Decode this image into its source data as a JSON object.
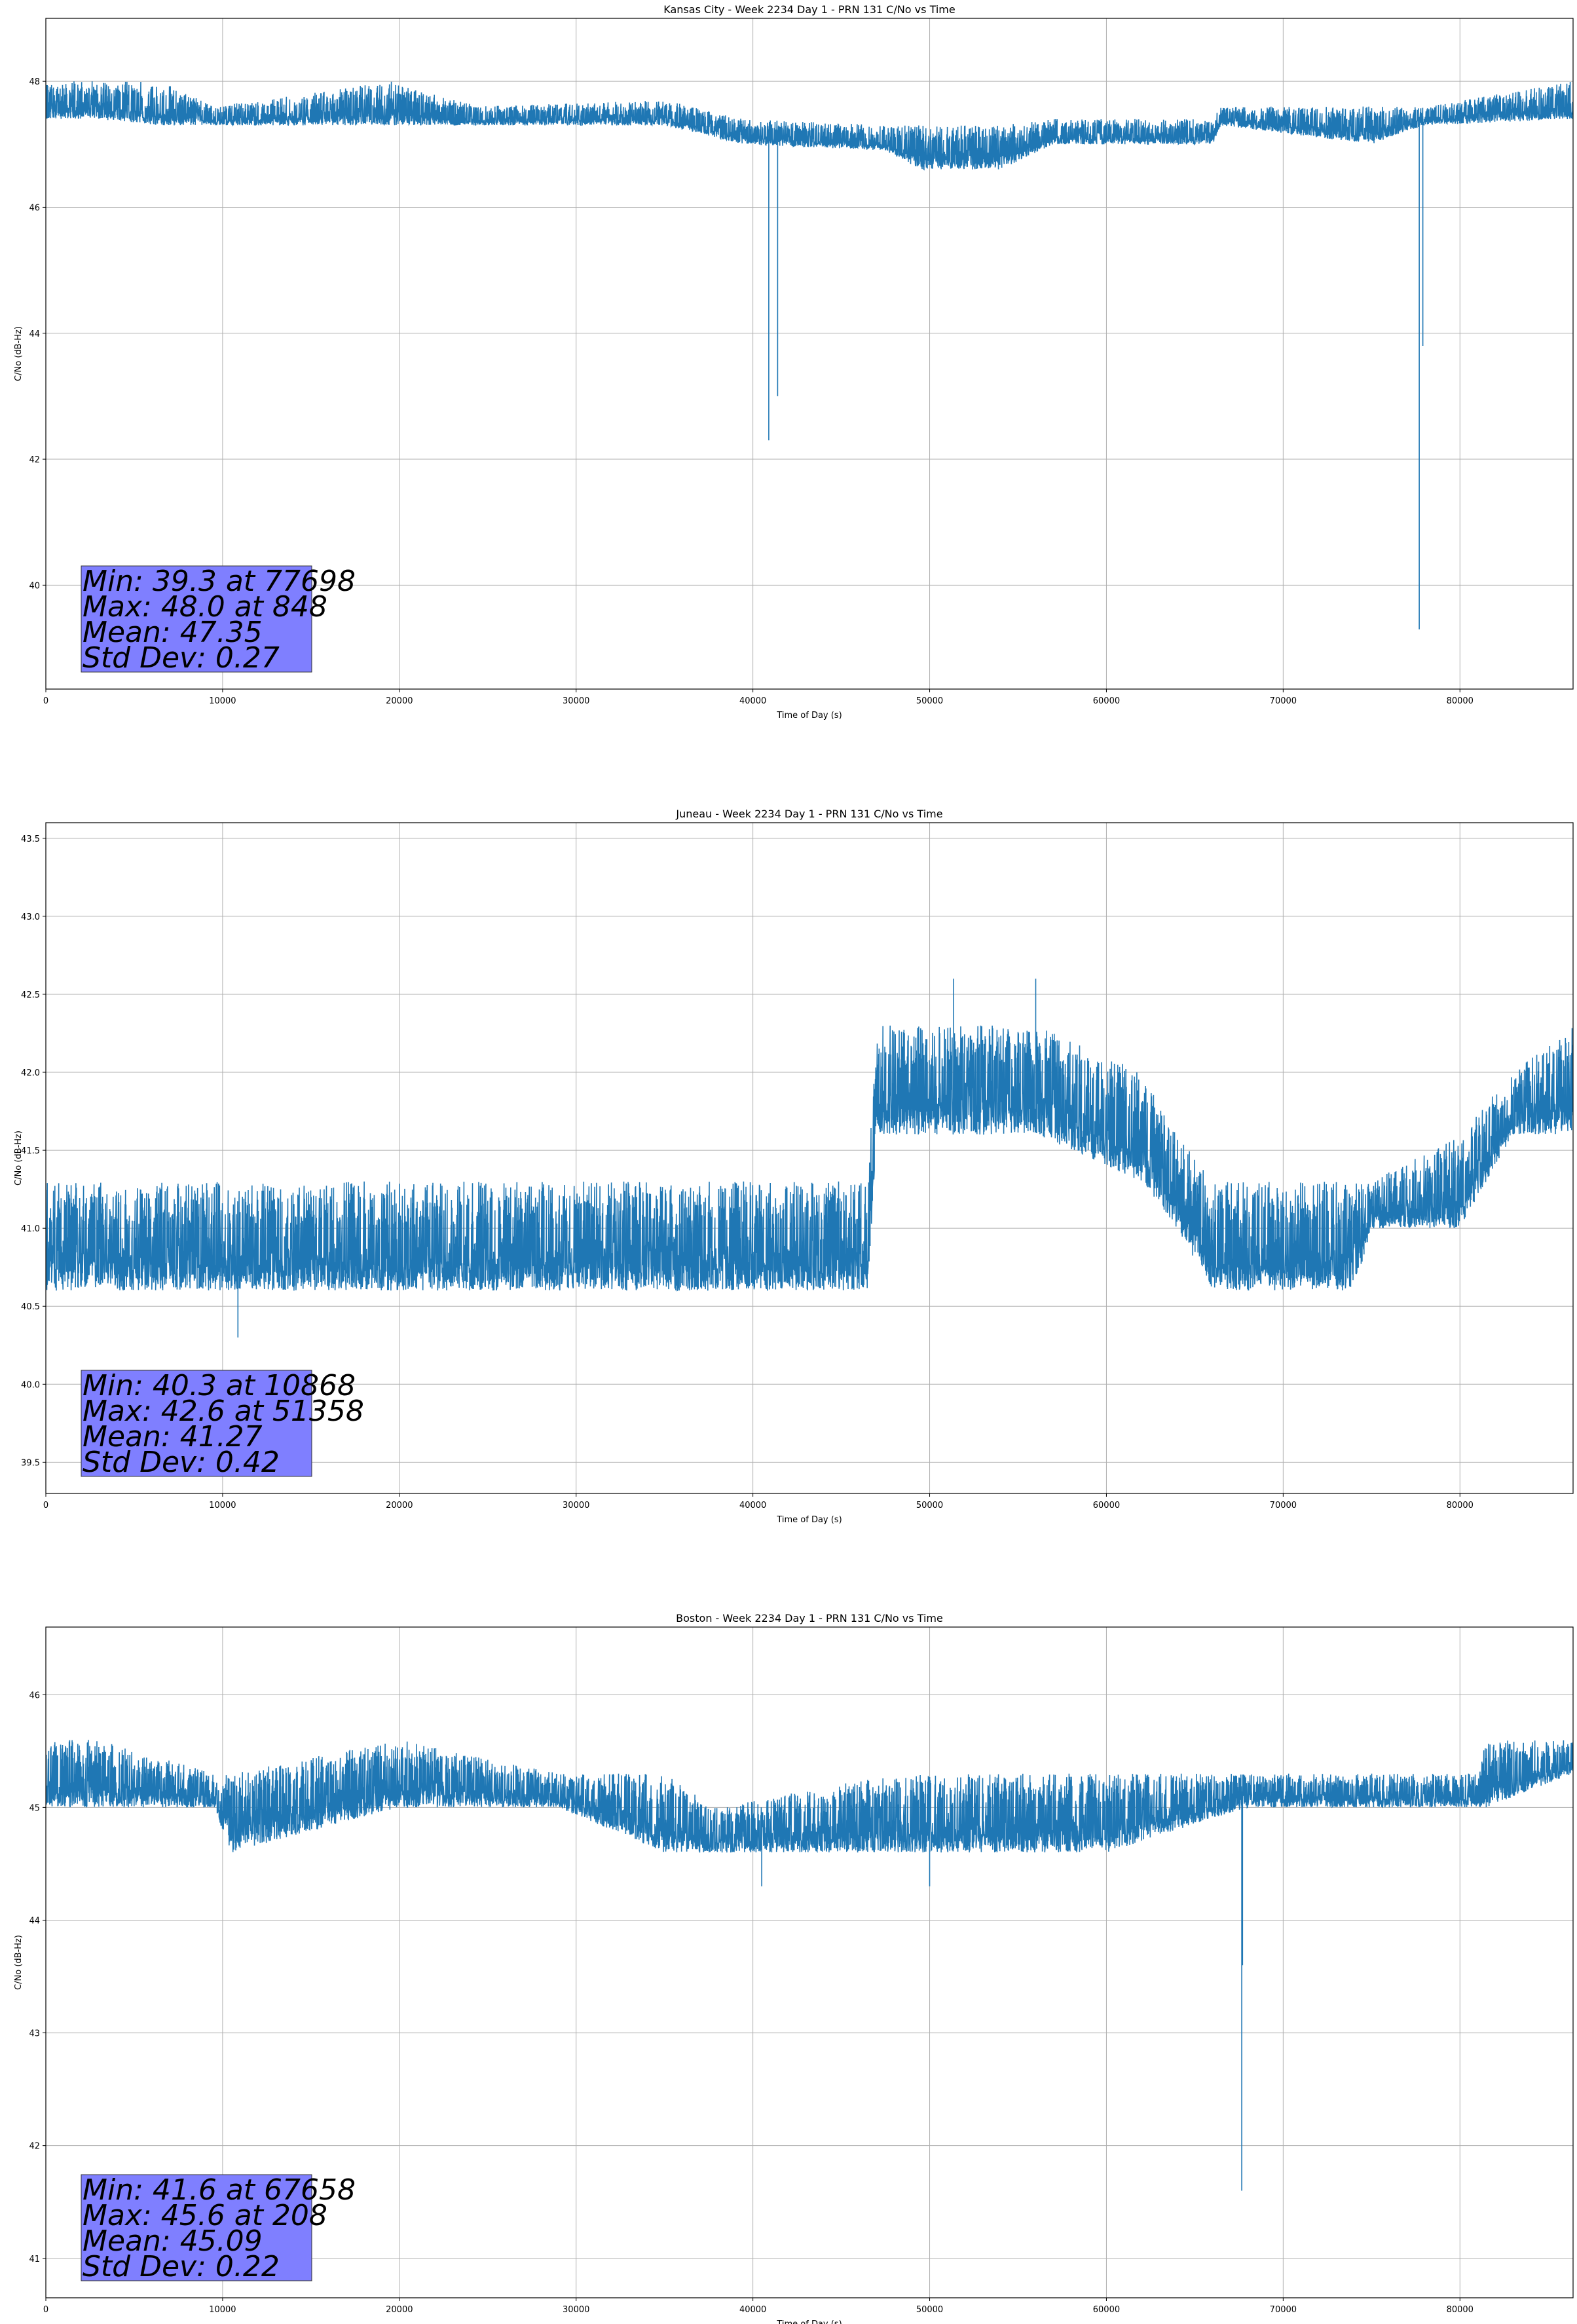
{
  "chart_data": [
    {
      "type": "line",
      "title": "Kansas City - Week 2234 Day 1 - PRN 131 C/No vs Time",
      "xlabel": "Time of Day (s)",
      "ylabel": "C/No (dB-Hz)",
      "xlim": [
        0,
        86400
      ],
      "ylim": [
        38.35,
        49.0
      ],
      "xticks": [
        0,
        10000,
        20000,
        30000,
        40000,
        50000,
        60000,
        70000,
        80000
      ],
      "yticks": [
        40,
        42,
        44,
        46,
        48
      ],
      "grid": true,
      "line_color": "#1f77b4",
      "band": [
        [
          0,
          47.4,
          48.0
        ],
        [
          3000,
          47.4,
          48.0
        ],
        [
          6500,
          47.3,
          48.0
        ],
        [
          9500,
          47.3,
          47.6
        ],
        [
          19500,
          47.3,
          48.0
        ],
        [
          24500,
          47.3,
          47.6
        ],
        [
          35000,
          47.3,
          47.7
        ],
        [
          39500,
          47.0,
          47.4
        ],
        [
          47500,
          46.9,
          47.3
        ],
        [
          49500,
          46.6,
          47.3
        ],
        [
          54000,
          46.6,
          47.3
        ],
        [
          57000,
          47.0,
          47.4
        ],
        [
          66000,
          47.0,
          47.4
        ],
        [
          66500,
          47.3,
          47.6
        ],
        [
          75000,
          47.0,
          47.6
        ],
        [
          78000,
          47.3,
          47.6
        ],
        [
          86400,
          47.4,
          48.0
        ]
      ],
      "spikes": [
        [
          40900,
          42.3
        ],
        [
          41400,
          43.0
        ],
        [
          77698,
          39.3
        ],
        [
          77900,
          43.8
        ]
      ],
      "stats": {
        "min": "Min: 39.3 at 77698",
        "max": "Max: 48.0 at 848",
        "mean": "Mean: 47.35",
        "std": "Std Dev: 0.27"
      }
    },
    {
      "type": "line",
      "title": "Juneau - Week 2234 Day 1 - PRN 131 C/No vs Time",
      "xlabel": "Time of Day (s)",
      "ylabel": "C/No (dB-Hz)",
      "xlim": [
        0,
        86400
      ],
      "ylim": [
        39.3,
        43.6
      ],
      "xticks": [
        0,
        10000,
        20000,
        30000,
        40000,
        50000,
        60000,
        70000,
        80000
      ],
      "yticks": [
        39.5,
        40.0,
        40.5,
        41.0,
        41.5,
        42.0,
        42.5,
        43.0,
        43.5
      ],
      "grid": true,
      "line_color": "#1f77b4",
      "band": [
        [
          0,
          40.6,
          41.3
        ],
        [
          10000,
          40.6,
          41.3
        ],
        [
          15000,
          40.6,
          41.3
        ],
        [
          30000,
          40.6,
          41.3
        ],
        [
          46500,
          40.6,
          41.3
        ],
        [
          47000,
          41.6,
          42.3
        ],
        [
          56000,
          41.6,
          42.3
        ],
        [
          62000,
          41.3,
          42.0
        ],
        [
          64000,
          41.0,
          41.6
        ],
        [
          66000,
          40.6,
          41.3
        ],
        [
          74000,
          40.6,
          41.3
        ],
        [
          75000,
          41.0,
          41.3
        ],
        [
          80000,
          41.0,
          41.6
        ],
        [
          83000,
          41.6,
          42.0
        ],
        [
          86400,
          41.6,
          42.3
        ]
      ],
      "spikes": [
        [
          10868,
          40.3
        ],
        [
          51358,
          42.6
        ],
        [
          56000,
          42.6
        ]
      ],
      "stats": {
        "min": "Min: 40.3 at 10868",
        "max": "Max: 42.6 at 51358",
        "mean": "Mean: 41.27",
        "std": "Std Dev: 0.42"
      }
    },
    {
      "type": "line",
      "title": "Boston - Week 2234 Day 1 - PRN 131 C/No vs Time",
      "xlabel": "Time of Day (s)",
      "ylabel": "C/No (dB-Hz)",
      "xlim": [
        0,
        86400
      ],
      "ylim": [
        40.65,
        46.6
      ],
      "xticks": [
        0,
        10000,
        20000,
        30000,
        40000,
        50000,
        60000,
        70000,
        80000
      ],
      "yticks": [
        41,
        42,
        43,
        44,
        45,
        46
      ],
      "grid": true,
      "line_color": "#1f77b4",
      "band": [
        [
          0,
          45.0,
          45.6
        ],
        [
          3000,
          45.0,
          45.6
        ],
        [
          9500,
          45.0,
          45.3
        ],
        [
          10500,
          44.6,
          45.3
        ],
        [
          20000,
          45.0,
          45.6
        ],
        [
          29000,
          45.0,
          45.3
        ],
        [
          35000,
          44.6,
          45.3
        ],
        [
          38000,
          44.6,
          45.0
        ],
        [
          48000,
          44.6,
          45.3
        ],
        [
          60000,
          44.6,
          45.3
        ],
        [
          68000,
          45.0,
          45.3
        ],
        [
          81000,
          45.0,
          45.3
        ],
        [
          81500,
          45.0,
          45.6
        ],
        [
          86400,
          45.3,
          45.6
        ]
      ],
      "spikes": [
        [
          40500,
          44.3
        ],
        [
          50000,
          44.3
        ],
        [
          67658,
          41.6
        ],
        [
          67700,
          43.6
        ]
      ],
      "stats": {
        "min": "Min: 41.6 at 67658",
        "max": "Max: 45.6 at 208",
        "mean": "Mean: 45.09",
        "std": "Std Dev: 0.22"
      }
    }
  ]
}
